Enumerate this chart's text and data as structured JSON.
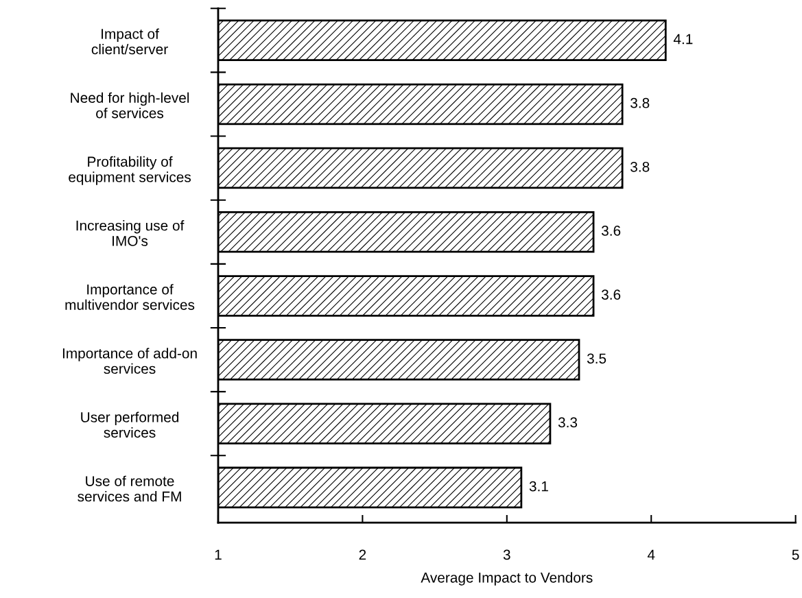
{
  "chart_data": {
    "type": "bar",
    "orientation": "horizontal",
    "xlabel": "Average Impact to Vendors",
    "categories": [
      "Impact of\nclient/server",
      "Need for high-level\nof services",
      "Profitability of\nequipment services",
      "Increasing use of\nIMO's",
      "Importance of\nmultivendor services",
      "Importance of add-on\nservices",
      "User performed\nservices",
      "Use of remote\nservices and FM"
    ],
    "values": [
      4.1,
      3.8,
      3.8,
      3.6,
      3.6,
      3.5,
      3.3,
      3.1
    ],
    "xlim": [
      1,
      5
    ],
    "xticks": [
      1,
      2,
      3,
      4,
      5
    ],
    "data_labels": true,
    "grid": false,
    "legend": false
  }
}
